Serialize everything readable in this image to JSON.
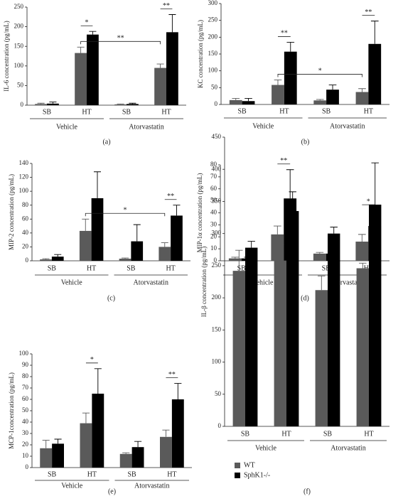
{
  "chart_data": [
    {
      "type": "bar",
      "panel": "(a)",
      "y_label": "IL-6 concentration (pg/mL)",
      "categories": [
        "SB",
        "HT",
        "SB",
        "HT"
      ],
      "groups": [
        "Vehicle",
        "Atorvastatin"
      ],
      "series": [
        {
          "name": "WT",
          "color": "#5a5a5a",
          "values": [
            3,
            133,
            2,
            95
          ],
          "errors": [
            2,
            15,
            1,
            10
          ]
        },
        {
          "name": "SphK1-/-",
          "color": "#000000",
          "values": [
            4,
            180,
            3,
            186
          ],
          "errors": [
            4,
            8,
            2,
            45
          ]
        }
      ],
      "annotations": [
        {
          "text": "*",
          "bars": [
            [
              0,
              1
            ],
            [
              1,
              1
            ]
          ]
        },
        {
          "text": "**",
          "bars": [
            [
              0,
              1
            ],
            [
              0,
              3
            ]
          ]
        },
        {
          "text": "**",
          "bars": [
            [
              0,
              3
            ],
            [
              1,
              3
            ]
          ]
        }
      ],
      "ylim": [
        0,
        250
      ],
      "yticks": [
        0,
        50,
        100,
        150,
        200,
        250
      ]
    },
    {
      "type": "bar",
      "panel": "(b)",
      "y_label": "KC concentration (pg/mL)",
      "categories": [
        "SB",
        "HT",
        "SB",
        "HT"
      ],
      "groups": [
        "Vehicle",
        "Atorvastatin"
      ],
      "series": [
        {
          "name": "WT",
          "color": "#5a5a5a",
          "values": [
            13,
            58,
            12,
            37
          ],
          "errors": [
            5,
            15,
            3,
            10
          ]
        },
        {
          "name": "SphK1-/-",
          "color": "#000000",
          "values": [
            10,
            157,
            44,
            180
          ],
          "errors": [
            8,
            28,
            14,
            68
          ]
        }
      ],
      "annotations": [
        {
          "text": "**",
          "bars": [
            [
              0,
              1
            ],
            [
              1,
              1
            ]
          ]
        },
        {
          "text": "*",
          "bars": [
            [
              0,
              1
            ],
            [
              0,
              3
            ]
          ]
        },
        {
          "text": "**",
          "bars": [
            [
              0,
              3
            ],
            [
              1,
              3
            ]
          ]
        }
      ],
      "ylim": [
        0,
        300
      ],
      "yticks": [
        0,
        50,
        100,
        150,
        200,
        250,
        300
      ]
    },
    {
      "type": "bar",
      "panel": "(c)",
      "y_label": "MIP-2 concentration (pg/mL)",
      "categories": [
        "SB",
        "HT",
        "SB",
        "HT"
      ],
      "groups": [
        "Vehicle",
        "Atorvastatin"
      ],
      "series": [
        {
          "name": "WT",
          "color": "#5a5a5a",
          "values": [
            2,
            43,
            3,
            20
          ],
          "errors": [
            1,
            17,
            1,
            6
          ]
        },
        {
          "name": "SphK1-/-",
          "color": "#000000",
          "values": [
            6,
            90,
            28,
            65
          ],
          "errors": [
            3,
            38,
            24,
            15
          ]
        }
      ],
      "annotations": [
        {
          "text": "*",
          "bars": [
            [
              0,
              1
            ],
            [
              0,
              3
            ]
          ]
        },
        {
          "text": "**",
          "bars": [
            [
              0,
              3
            ],
            [
              1,
              3
            ]
          ]
        }
      ],
      "ylim": [
        0,
        140
      ],
      "yticks": [
        0,
        20,
        40,
        60,
        80,
        100,
        120,
        140
      ]
    },
    {
      "type": "bar",
      "panel": "(d)",
      "y_label": "MIP-1α concentration (pg/mL)",
      "categories": [
        "SB",
        "HT",
        "SB",
        "HT"
      ],
      "groups": [
        "Vehicle",
        "Atorvastatin"
      ],
      "series": [
        {
          "name": "WT",
          "color": "#5a5a5a",
          "values": [
            2,
            22,
            6,
            16
          ],
          "errors": [
            1,
            7,
            1,
            6
          ]
        },
        {
          "name": "SphK1-/-",
          "color": "#000000",
          "values": [
            2,
            52,
            6,
            29
          ],
          "errors": [
            1,
            24,
            5,
            13
          ]
        }
      ],
      "annotations": [
        {
          "text": "**",
          "bars": [
            [
              0,
              1
            ],
            [
              1,
              1
            ]
          ]
        },
        {
          "text": "*",
          "bars": [
            [
              0,
              3
            ],
            [
              1,
              3
            ]
          ]
        }
      ],
      "ylim": [
        0,
        80
      ],
      "yticks": [
        0,
        10,
        20,
        30,
        40,
        50,
        60,
        70,
        80
      ]
    },
    {
      "type": "bar",
      "panel": "(e)",
      "y_label": "MCP-1concentration (pg/mL)",
      "categories": [
        "SB",
        "HT",
        "SB",
        "HT"
      ],
      "groups": [
        "Vehicle",
        "Atorvastatin"
      ],
      "series": [
        {
          "name": "WT",
          "color": "#5a5a5a",
          "values": [
            17,
            39,
            12,
            27
          ],
          "errors": [
            7,
            9,
            1,
            6
          ]
        },
        {
          "name": "SphK1-/-",
          "color": "#000000",
          "values": [
            21,
            65,
            18,
            60
          ],
          "errors": [
            4,
            22,
            5,
            14
          ]
        }
      ],
      "annotations": [
        {
          "text": "*",
          "bars": [
            [
              0,
              1
            ],
            [
              1,
              1
            ]
          ]
        },
        {
          "text": "**",
          "bars": [
            [
              0,
              3
            ],
            [
              1,
              3
            ]
          ]
        }
      ],
      "ylim": [
        0,
        100
      ],
      "yticks": [
        0,
        10,
        20,
        30,
        40,
        50,
        60,
        70,
        80,
        90,
        100
      ]
    },
    {
      "type": "bar",
      "panel": "(f)",
      "y_label": "IL-β concentration (pg/mL)",
      "categories": [
        "SB",
        "HT",
        "SB",
        "HT"
      ],
      "groups": [
        "Vehicle",
        "Atorvastatin"
      ],
      "series": [
        {
          "name": "WT",
          "color": "#5a5a5a",
          "values": [
            242,
            258,
            212,
            246
          ],
          "errors": [
            32,
            25,
            22,
            8
          ]
        },
        {
          "name": "SphK1-/-",
          "color": "#000000",
          "values": [
            278,
            335,
            300,
            345
          ],
          "errors": [
            10,
            30,
            10,
            65
          ]
        }
      ],
      "annotations": [],
      "ylim": [
        0,
        450
      ],
      "yticks": [
        0,
        50,
        100,
        150,
        200,
        250,
        300,
        350,
        400,
        450
      ],
      "legend": true
    }
  ]
}
